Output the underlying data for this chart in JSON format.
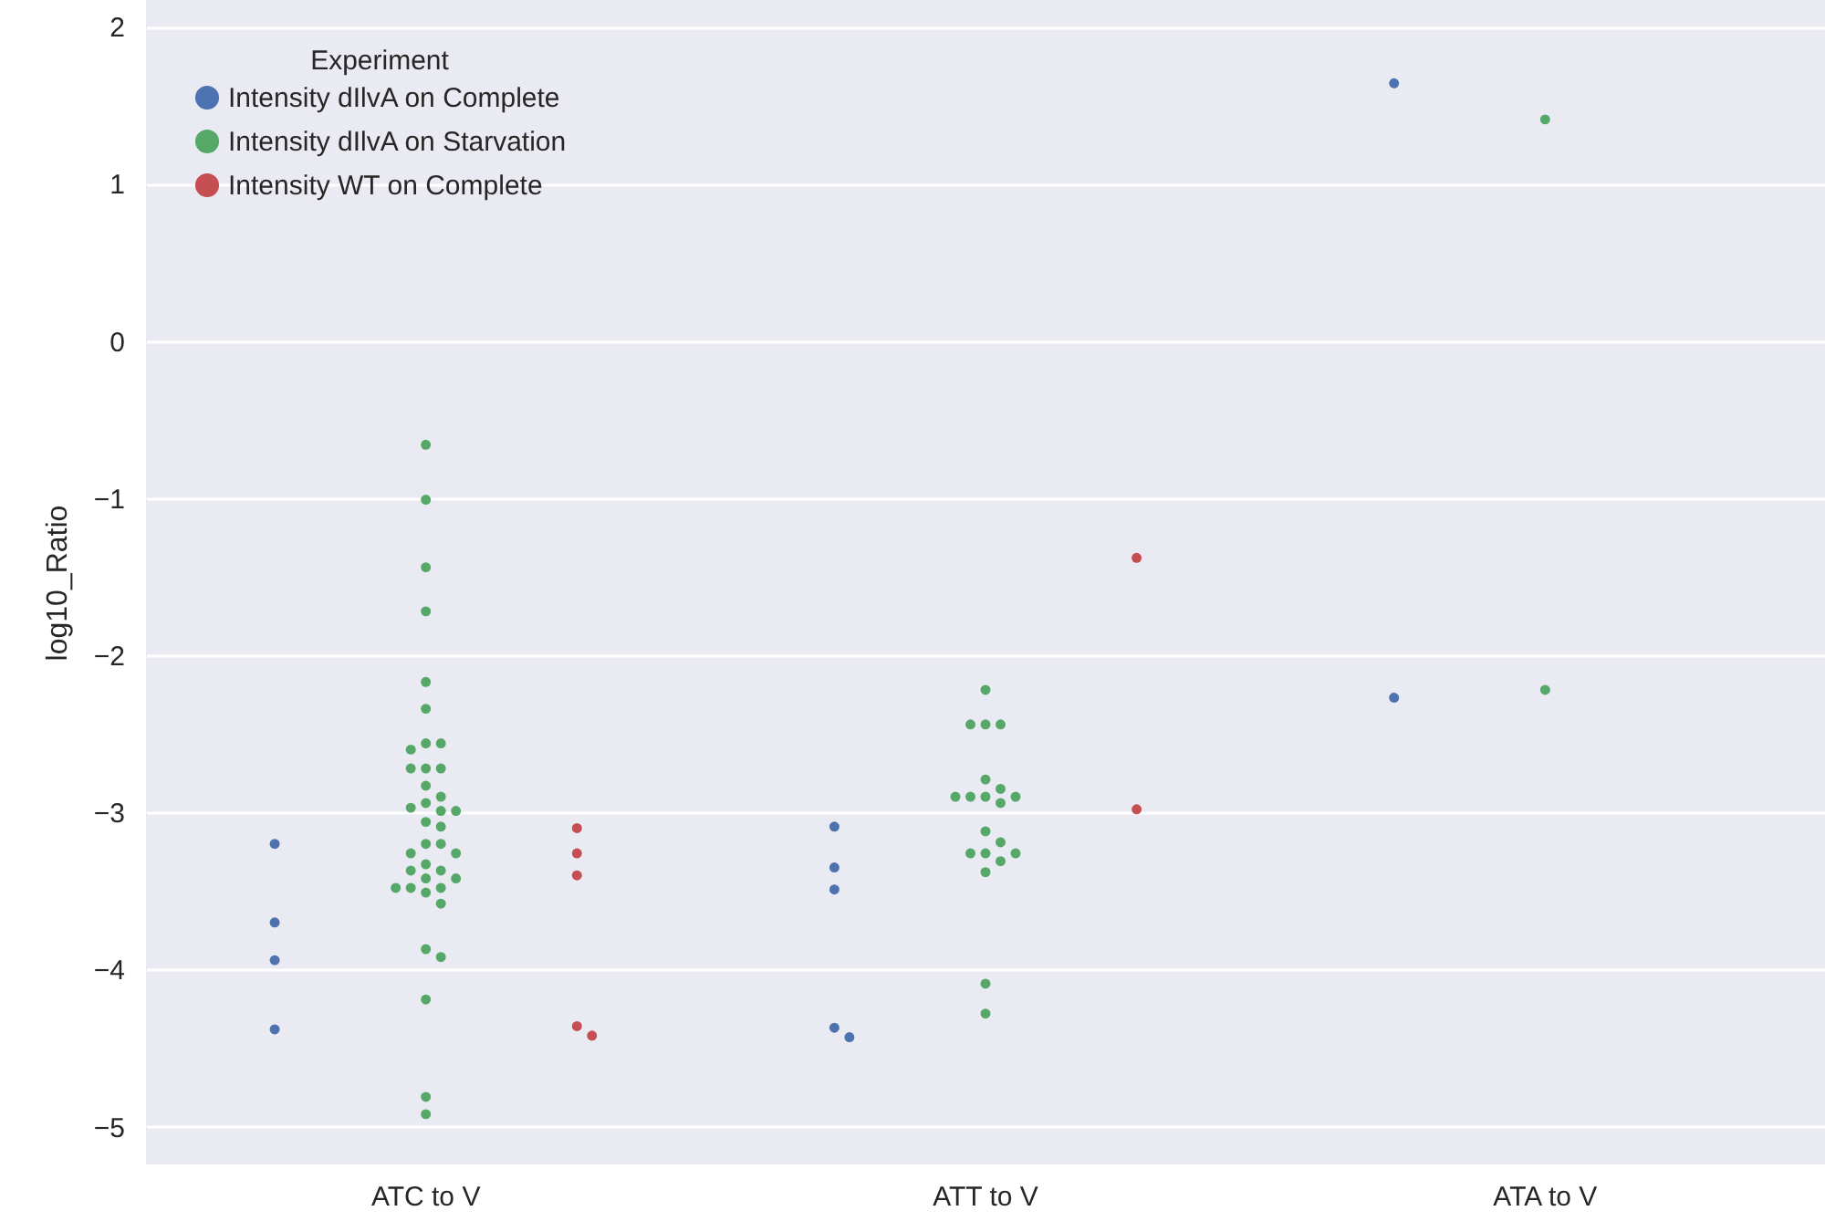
{
  "chart_data": {
    "type": "scatter",
    "ylabel": "log10_Ratio",
    "legend_title": "Experiment",
    "categories": [
      "ATC to V",
      "ATT to V",
      "ATA to V"
    ],
    "series": [
      {
        "name": "Intensity dIlvA on Complete",
        "color": "#4c72b0",
        "x": [
          "ATC to V",
          "ATC to V",
          "ATC to V",
          "ATC to V",
          "ATT to V",
          "ATT to V",
          "ATT to V",
          "ATT to V",
          "ATT to V",
          "ATA to V",
          "ATA to V"
        ],
        "values": [
          -3.2,
          -3.7,
          -3.94,
          -4.38,
          -3.09,
          -3.35,
          -3.49,
          -4.37,
          -4.43,
          1.64,
          -2.27
        ]
      },
      {
        "name": "Intensity dIlvA on Starvation",
        "color": "#55a868",
        "x": [
          "ATC to V",
          "ATC to V",
          "ATC to V",
          "ATC to V",
          "ATC to V",
          "ATC to V",
          "ATC to V",
          "ATC to V",
          "ATC to V",
          "ATC to V",
          "ATC to V",
          "ATC to V",
          "ATC to V",
          "ATC to V",
          "ATC to V",
          "ATC to V",
          "ATC to V",
          "ATC to V",
          "ATC to V",
          "ATC to V",
          "ATC to V",
          "ATC to V",
          "ATC to V",
          "ATC to V",
          "ATC to V",
          "ATC to V",
          "ATC to V",
          "ATC to V",
          "ATC to V",
          "ATC to V",
          "ATC to V",
          "ATC to V",
          "ATC to V",
          "ATC to V",
          "ATC to V",
          "ATC to V",
          "ATC to V",
          "ATC to V",
          "ATC to V",
          "ATT to V",
          "ATT to V",
          "ATT to V",
          "ATT to V",
          "ATT to V",
          "ATT to V",
          "ATT to V",
          "ATT to V",
          "ATT to V",
          "ATT to V",
          "ATT to V",
          "ATT to V",
          "ATT to V",
          "ATT to V",
          "ATT to V",
          "ATT to V",
          "ATT to V",
          "ATT to V",
          "ATT to V",
          "ATT to V",
          "ATA to V",
          "ATA to V"
        ],
        "values": [
          -0.66,
          -1.01,
          -1.44,
          -1.72,
          -2.17,
          -2.34,
          -2.56,
          -2.56,
          -2.6,
          -2.72,
          -2.72,
          -2.72,
          -2.83,
          -2.9,
          -2.94,
          -2.97,
          -2.99,
          -2.99,
          -3.06,
          -3.09,
          -3.2,
          -3.2,
          -3.26,
          -3.26,
          -3.33,
          -3.37,
          -3.37,
          -3.42,
          -3.42,
          -3.48,
          -3.48,
          -3.48,
          -3.51,
          -3.58,
          -3.87,
          -3.92,
          -4.19,
          -4.81,
          -4.92,
          -2.22,
          -2.44,
          -2.44,
          -2.44,
          -2.79,
          -2.85,
          -2.9,
          -2.9,
          -2.9,
          -2.9,
          -2.94,
          -3.12,
          -3.19,
          -3.26,
          -3.26,
          -3.26,
          -3.31,
          -3.38,
          -4.09,
          -4.28,
          1.41,
          -2.22
        ]
      },
      {
        "name": "Intensity WT on Complete",
        "color": "#c44e52",
        "x": [
          "ATC to V",
          "ATC to V",
          "ATC to V",
          "ATC to V",
          "ATC to V",
          "ATT to V",
          "ATT to V"
        ],
        "values": [
          -3.1,
          -3.26,
          -3.4,
          -4.36,
          -4.42,
          -1.38,
          -2.98
        ]
      }
    ],
    "ylim": [
      -5.24,
      2.17
    ],
    "yticks": [
      -5,
      -4,
      -3,
      -2,
      -1,
      0,
      1,
      2
    ],
    "grid": "y",
    "legend": "top left",
    "marker": "circle"
  }
}
